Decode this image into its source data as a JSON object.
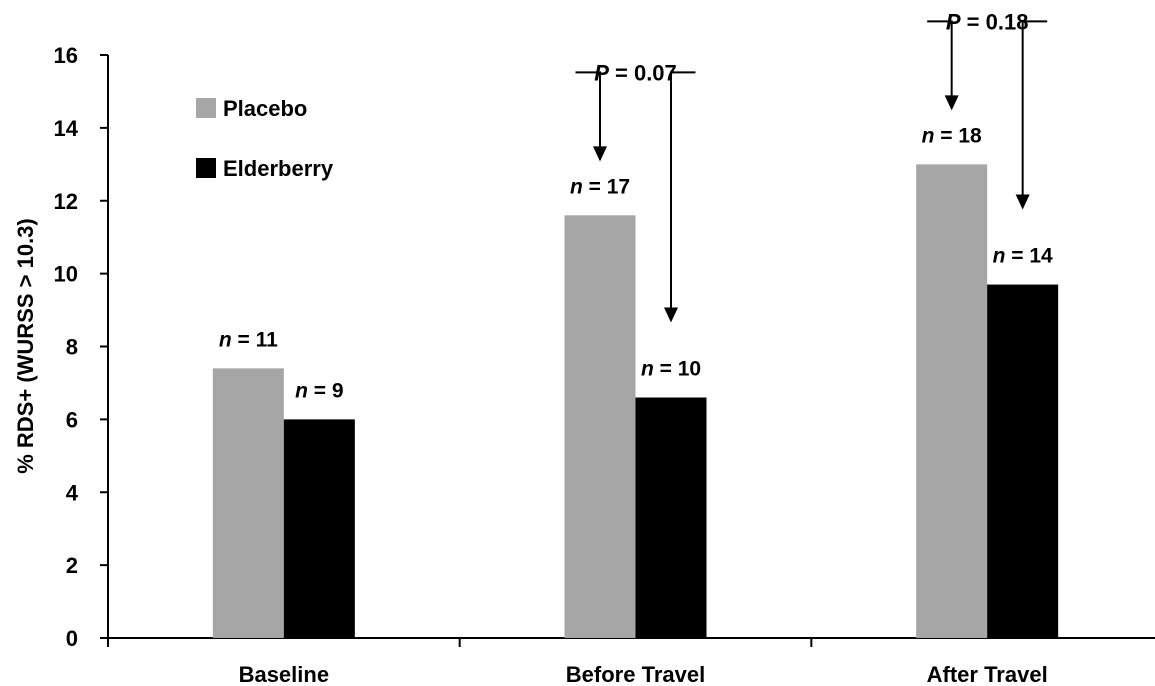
{
  "chart_data": {
    "type": "bar",
    "categories": [
      "Baseline",
      "Before Travel",
      "After Travel"
    ],
    "series": [
      {
        "name": "Placebo",
        "color": "#a6a6a6",
        "values": [
          7.4,
          11.6,
          13.0
        ],
        "n_labels": [
          "11",
          "17",
          "18"
        ]
      },
      {
        "name": "Elderberry",
        "color": "#000000",
        "values": [
          6.0,
          6.6,
          9.7
        ],
        "n_labels": [
          "9",
          "10",
          "14"
        ]
      }
    ],
    "ylabel": "% RDS+ (WURSS > 10.3)",
    "xlabel": "",
    "ylim": [
      0,
      16
    ],
    "yticks": [
      0,
      2,
      4,
      6,
      8,
      10,
      12,
      14,
      16
    ],
    "grid": false,
    "legend_position": "top-left",
    "n_prefix": "n",
    "n_separator": " = ",
    "p_prefix": "P",
    "p_separator": " = ",
    "comparisons": [
      {
        "category_index": 1,
        "p_value": "0.07"
      },
      {
        "category_index": 2,
        "p_value": "0.18"
      }
    ]
  }
}
